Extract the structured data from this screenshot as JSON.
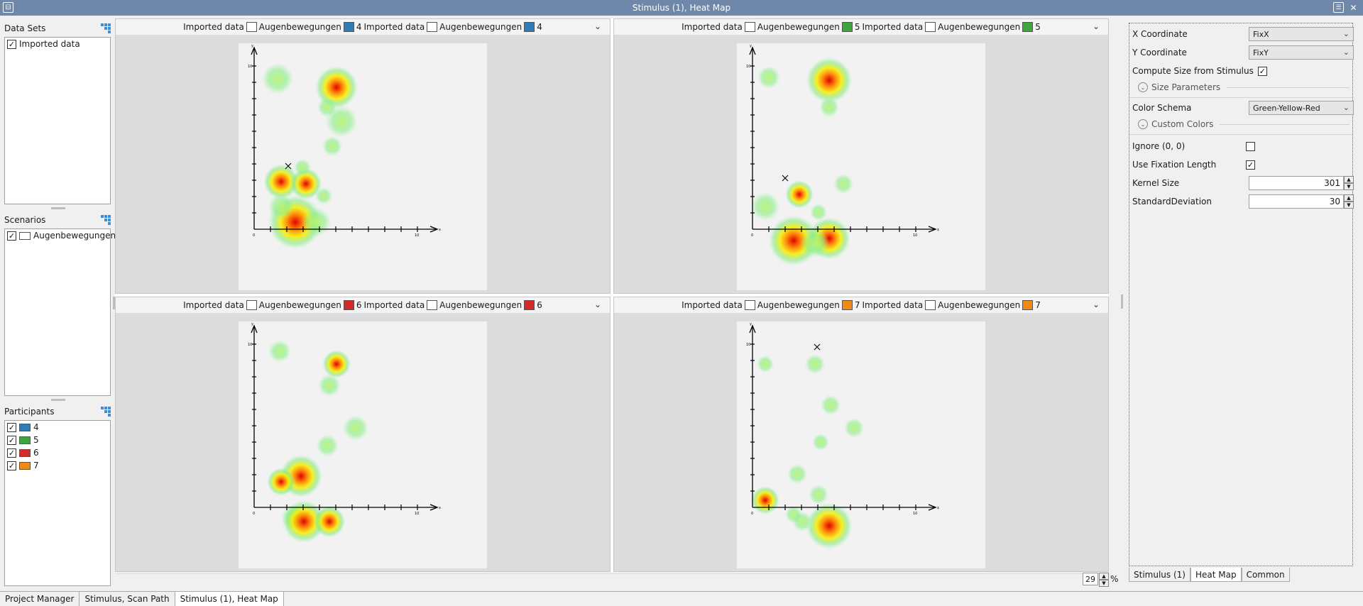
{
  "window": {
    "title": "Stimulus (1), Heat Map"
  },
  "left": {
    "datasets": {
      "title": "Data Sets",
      "items": [
        {
          "label": "Imported data",
          "checked": true
        }
      ]
    },
    "scenarios": {
      "title": "Scenarios",
      "items": [
        {
          "label": "Augenbewegungen",
          "checked": true
        }
      ]
    },
    "participants": {
      "title": "Participants",
      "items": [
        {
          "label": "4",
          "color": "#2e7db8",
          "checked": true
        },
        {
          "label": "5",
          "color": "#3da63d",
          "checked": true
        },
        {
          "label": "6",
          "color": "#d62a2a",
          "checked": true
        },
        {
          "label": "7",
          "color": "#f08a17",
          "checked": true
        }
      ]
    }
  },
  "panels": [
    {
      "dataset": "Imported data",
      "scenario": "Augenbewegungen",
      "participant": "4",
      "color": "#2e7db8"
    },
    {
      "dataset": "Imported data",
      "scenario": "Augenbewegungen",
      "participant": "5",
      "color": "#3da63d"
    },
    {
      "dataset": "Imported data",
      "scenario": "Augenbewegungen",
      "participant": "6",
      "color": "#d62a2a"
    },
    {
      "dataset": "Imported data",
      "scenario": "Augenbewegungen",
      "participant": "7",
      "color": "#f08a17"
    }
  ],
  "zoom": {
    "value": "29",
    "unit": "%"
  },
  "props": {
    "x_coord": {
      "label": "X Coordinate",
      "value": "FixX"
    },
    "y_coord": {
      "label": "Y Coordinate",
      "value": "FixY"
    },
    "compute_size": {
      "label": "Compute Size from Stimulus",
      "checked": true
    },
    "size_params": {
      "label": "Size Parameters"
    },
    "color_schema": {
      "label": "Color Schema",
      "value": "Green-Yellow-Red"
    },
    "custom_colors": {
      "label": "Custom Colors"
    },
    "ignore00": {
      "label": "Ignore (0, 0)",
      "checked": false
    },
    "use_fix_len": {
      "label": "Use Fixation Length",
      "checked": true
    },
    "kernel": {
      "label": "Kernel Size",
      "value": "301"
    },
    "stddev": {
      "label": "StandardDeviation",
      "value": "30"
    }
  },
  "prop_tabs": [
    "Stimulus (1)",
    "Heat Map",
    "Common"
  ],
  "doc_tabs": [
    "Project Manager",
    "Stimulus, Scan Path",
    "Stimulus (1), Heat Map"
  ],
  "axis": {
    "x_label": "x",
    "y_label": "y",
    "zero": "0",
    "ten": "10"
  }
}
